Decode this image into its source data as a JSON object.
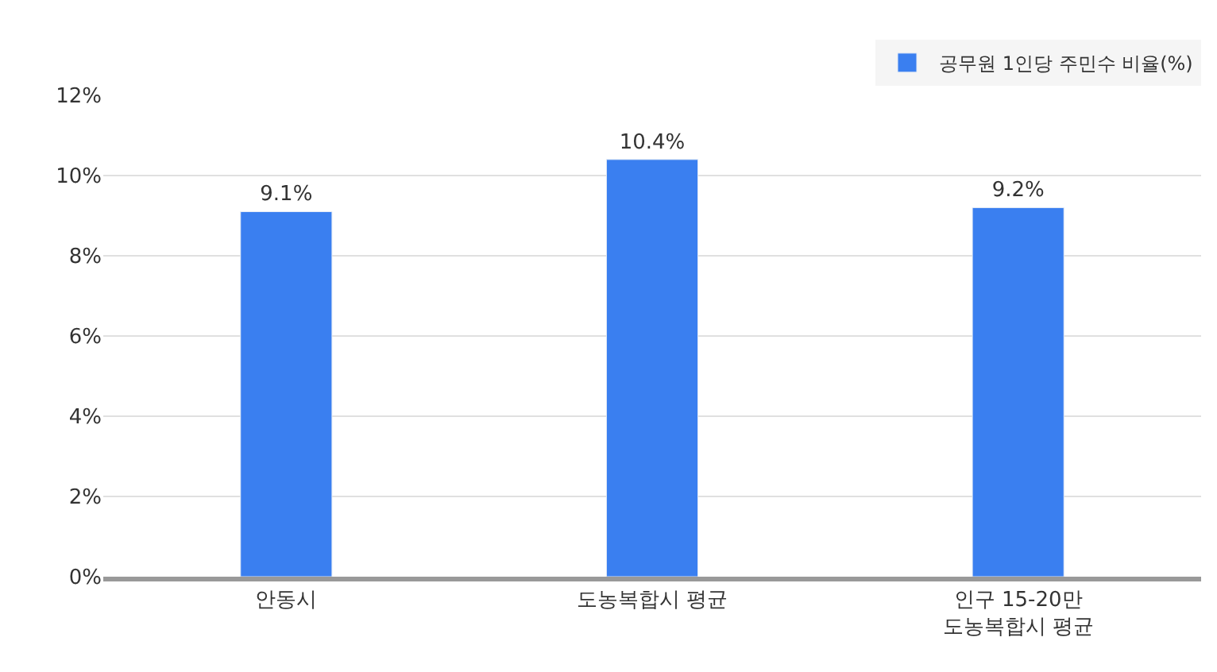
{
  "chart_data": {
    "type": "bar",
    "categories": [
      "안동시",
      "도농복합시 평균",
      "인구 15-20만\n도농복합시 평균"
    ],
    "series": [
      {
        "name": "공무원 1인당 주민수 비율(%)",
        "color": "#3a7ff0",
        "values": [
          9.1,
          10.4,
          9.2
        ],
        "value_labels": [
          "9.1%",
          "10.4%",
          "9.2%"
        ]
      }
    ],
    "ylim": [
      0,
      12
    ],
    "yticks": [
      {
        "value": 0,
        "label": "0%"
      },
      {
        "value": 2,
        "label": "2%"
      },
      {
        "value": 4,
        "label": "4%"
      },
      {
        "value": 6,
        "label": "6%"
      },
      {
        "value": 8,
        "label": "8%"
      },
      {
        "value": 10,
        "label": "10%"
      },
      {
        "value": 12,
        "label": "12%"
      }
    ],
    "grid": "y",
    "legend": "top right"
  }
}
